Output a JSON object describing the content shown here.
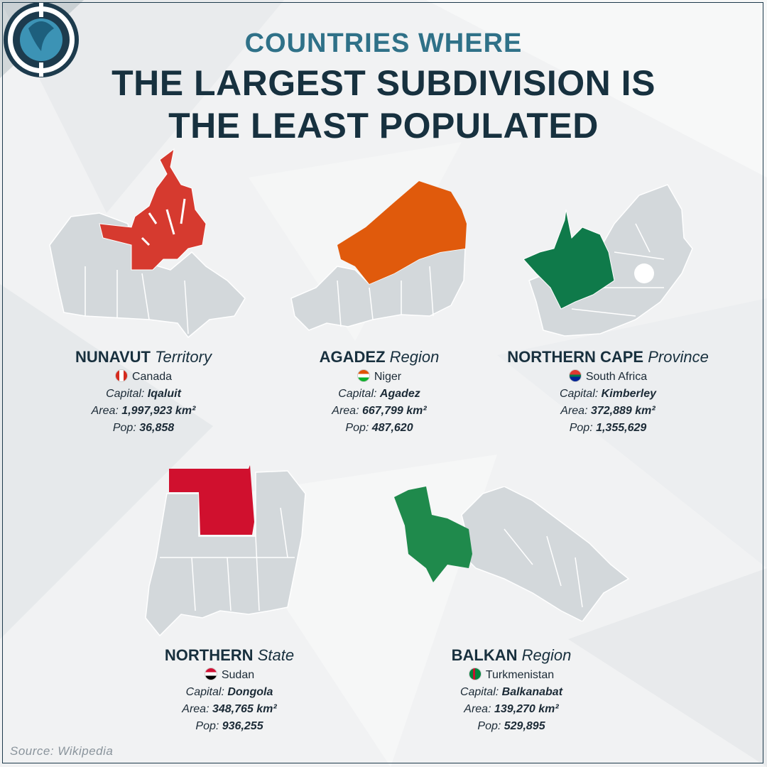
{
  "header": {
    "subtitle": "COUNTRIES WHERE",
    "title_line1": "THE LARGEST SUBDIVISION IS",
    "title_line2": "THE LEAST POPULATED"
  },
  "labels": {
    "capital": "Capital: ",
    "area": "Area: ",
    "pop": "Pop: "
  },
  "colors": {
    "nunavut": "#d63a2f",
    "agadez": "#e05a0c",
    "northern_cape": "#0f7a4a",
    "northern_sudan": "#d0102e",
    "balkan": "#1f8a4c",
    "base_map": "#d3d8db",
    "title_accent": "#2f7188"
  },
  "regions": [
    {
      "id": "nunavut",
      "name": "NUNAVUT",
      "type": "Territory",
      "country": "Canada",
      "flag": "canada-flag-icon",
      "capital": "Iqaluit",
      "area": "1,997,923 km²",
      "pop": "36,858"
    },
    {
      "id": "agadez",
      "name": "AGADEZ",
      "type": "Region",
      "country": "Niger",
      "flag": "niger-flag-icon",
      "capital": "Agadez",
      "area": "667,799 km²",
      "pop": "487,620"
    },
    {
      "id": "northern_cape",
      "name": "NORTHERN CAPE",
      "type": "Province",
      "country": "South Africa",
      "flag": "south-africa-flag-icon",
      "capital": "Kimberley",
      "area": "372,889 km²",
      "pop": "1,355,629"
    },
    {
      "id": "northern_sudan",
      "name": "NORTHERN",
      "type": "State",
      "country": "Sudan",
      "flag": "sudan-flag-icon",
      "capital": "Dongola",
      "area": "348,765 km²",
      "pop": "936,255"
    },
    {
      "id": "balkan",
      "name": "BALKAN",
      "type": "Region",
      "country": "Turkmenistan",
      "flag": "turkmenistan-flag-icon",
      "capital": "Balkanabat",
      "area": "139,270 km²",
      "pop": "529,895"
    }
  ],
  "source": "Source: Wikipedia"
}
